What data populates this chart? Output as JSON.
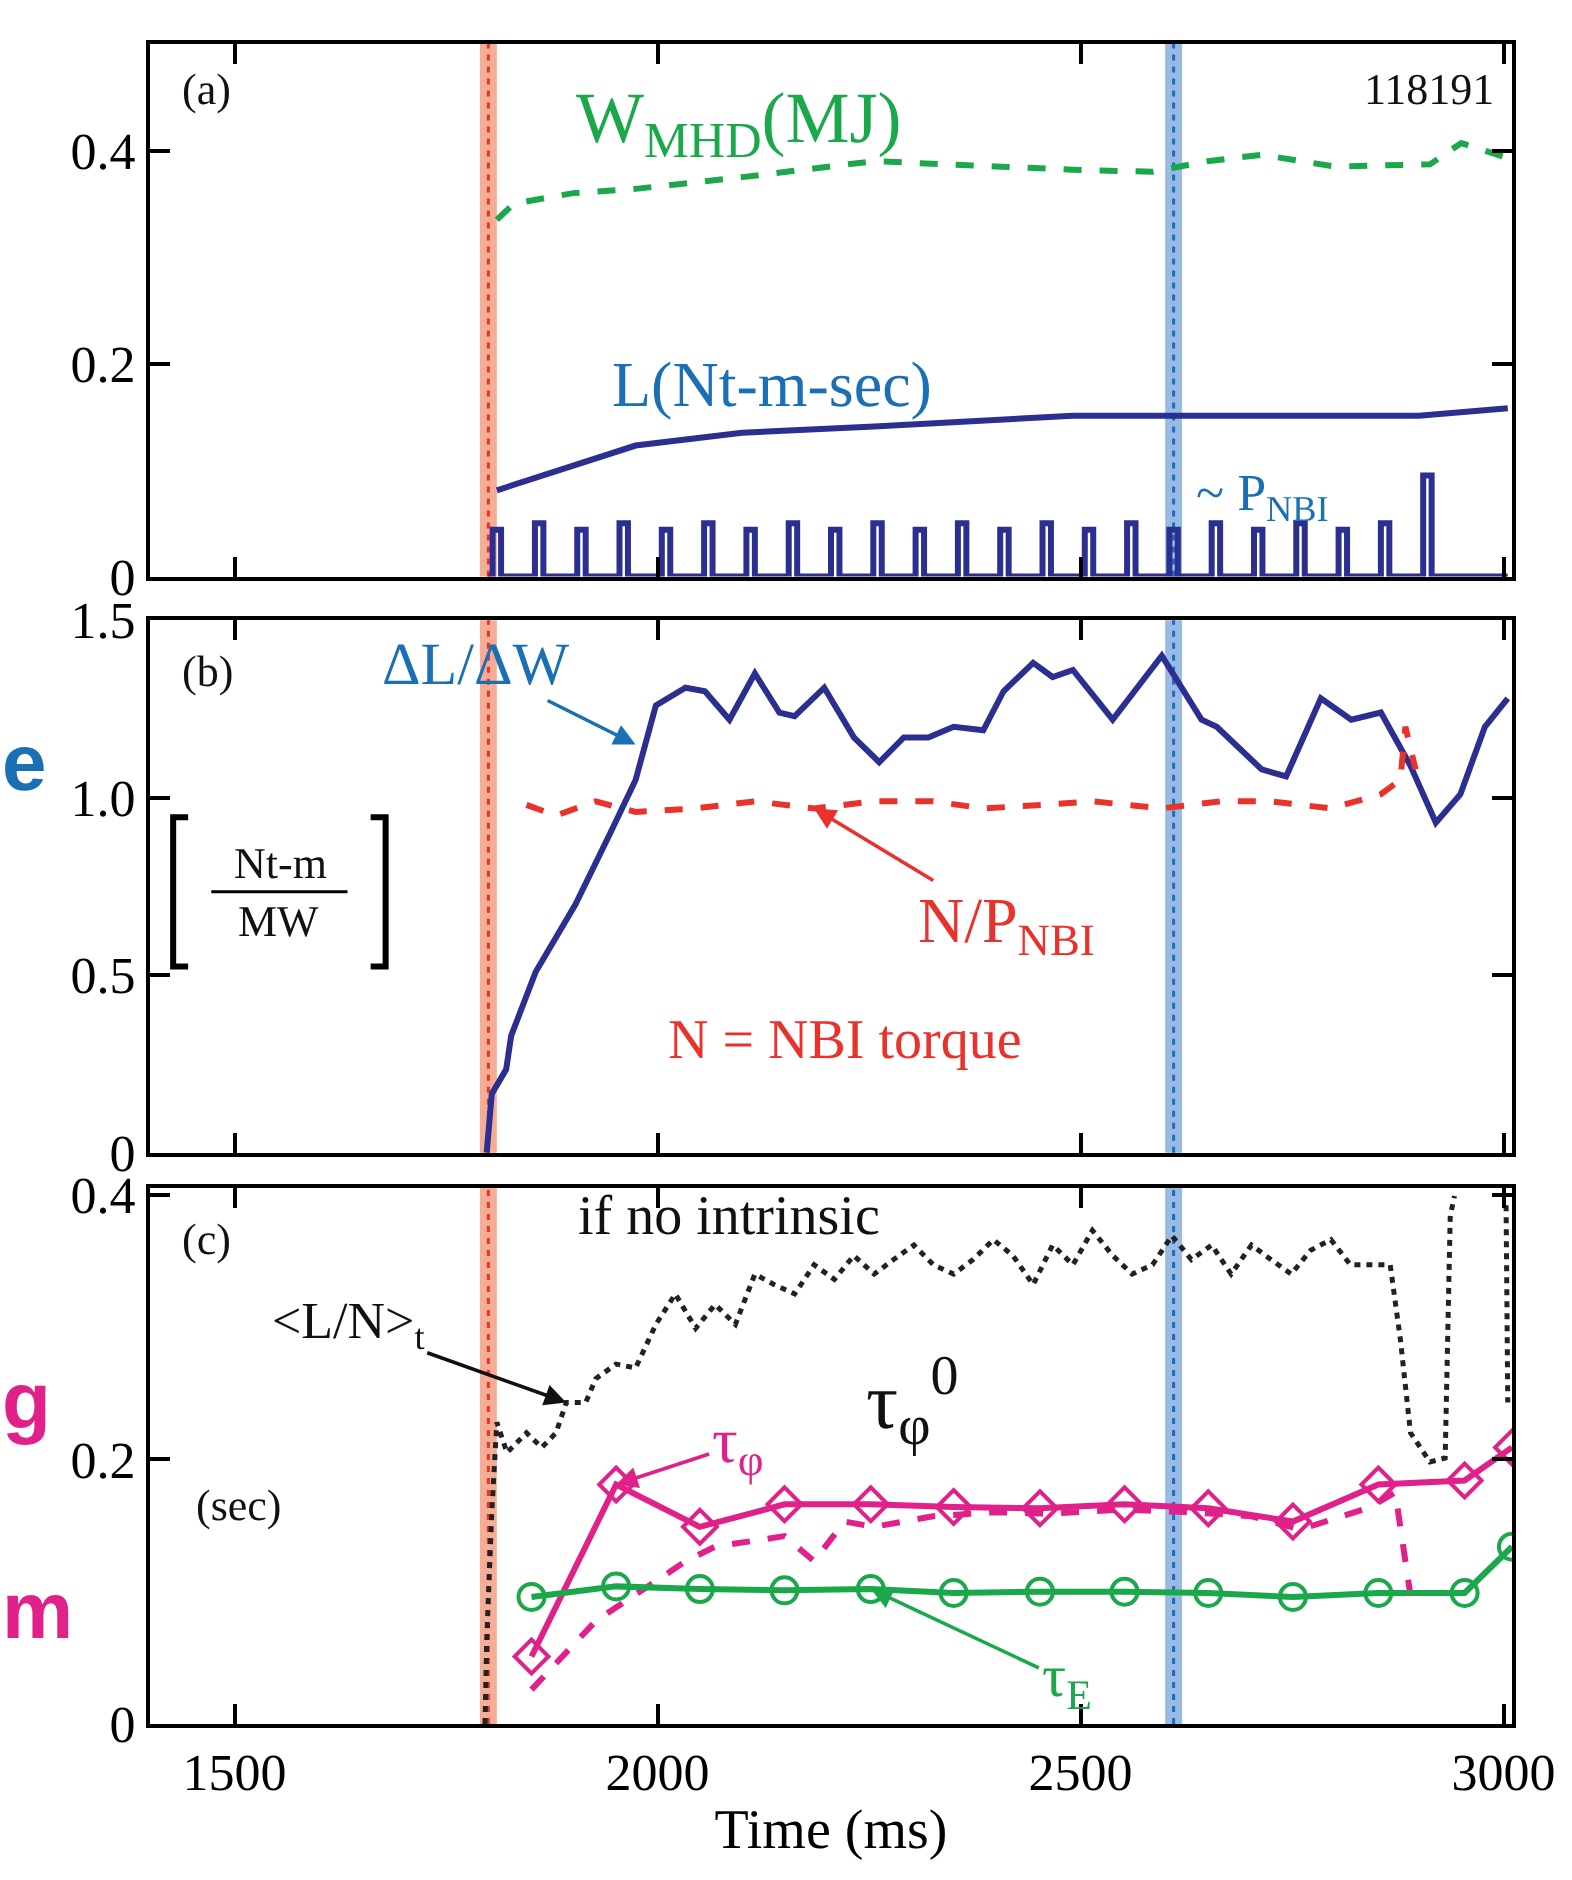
{
  "chart_data": [
    {
      "type": "line",
      "xlim": [
        1400,
        3010
      ],
      "xticks": [
        1500,
        2000,
        2500,
        3000
      ],
      "ylim": [
        0,
        0.5
      ],
      "yticks": [
        0,
        0.2,
        0.4
      ],
      "tick_labels": "y",
      "bands": [
        {
          "axis": "x",
          "from": 1790,
          "to": 1810,
          "color": "#f5a48a"
        },
        {
          "axis": "x",
          "from": 2600,
          "to": 2620,
          "color": "#8fb3e3"
        }
      ],
      "ref_lines": [
        {
          "axis": "x",
          "value": 1800,
          "color": "#e8322b",
          "line_style": "dotted"
        },
        {
          "axis": "x",
          "value": 2610,
          "color": "#1a6fb5",
          "line_style": "dotted"
        }
      ],
      "annotations": [
        "(a)",
        "118191",
        "W$_{MHD}$(MJ)",
        "L(Nt-m-sec)",
        "~ P$_{NBI}$"
      ],
      "series": [
        {
          "color": "#1aa84a",
          "line_style": "dashed",
          "x": [
            1810,
            1830,
            1900,
            1974,
            2100,
            2256,
            2400,
            2491,
            2585,
            2650,
            2714,
            2800,
            2913,
            2950,
            3005
          ],
          "values": [
            0.335,
            0.35,
            0.36,
            0.364,
            0.375,
            0.39,
            0.385,
            0.382,
            0.38,
            0.39,
            0.396,
            0.385,
            0.387,
            0.407,
            0.393
          ]
        },
        {
          "color": "#2b2f8f",
          "line_style": "solid",
          "x": [
            1810,
            1974,
            2100,
            2256,
            2491,
            2700,
            2900,
            3005
          ],
          "values": [
            0.081,
            0.123,
            0.135,
            0.141,
            0.151,
            0.151,
            0.151,
            0.158
          ]
        },
        {
          "color": "#2b2f8f",
          "line_style": "solid",
          "x": [
            1800,
            1805,
            1805,
            1815,
            1815,
            1855,
            1855,
            1865,
            1865,
            1905,
            1905,
            1915,
            1915,
            1955,
            1955,
            1965,
            1965,
            2005,
            2005,
            2015,
            2015,
            2055,
            2055,
            2065,
            2065,
            2105,
            2105,
            2115,
            2115,
            2155,
            2155,
            2165,
            2165,
            2205,
            2205,
            2215,
            2215,
            2255,
            2255,
            2265,
            2265,
            2305,
            2305,
            2315,
            2315,
            2355,
            2355,
            2365,
            2365,
            2405,
            2405,
            2415,
            2415,
            2455,
            2455,
            2465,
            2465,
            2505,
            2505,
            2515,
            2515,
            2555,
            2555,
            2565,
            2565,
            2605,
            2605,
            2615,
            2615,
            2655,
            2655,
            2665,
            2665,
            2705,
            2705,
            2715,
            2715,
            2755,
            2755,
            2765,
            2765,
            2805,
            2805,
            2815,
            2815,
            2855,
            2855,
            2865,
            2865,
            2905,
            2905,
            2915,
            2915,
            3005
          ],
          "values": [
            0,
            0,
            0.044,
            0.044,
            0,
            0,
            0.05,
            0.05,
            0,
            0,
            0.044,
            0.044,
            0,
            0,
            0.05,
            0.05,
            0,
            0,
            0.044,
            0.044,
            0,
            0,
            0.05,
            0.05,
            0,
            0,
            0.044,
            0.044,
            0,
            0,
            0.05,
            0.05,
            0,
            0,
            0.044,
            0.044,
            0,
            0,
            0.05,
            0.05,
            0,
            0,
            0.044,
            0.044,
            0,
            0,
            0.05,
            0.05,
            0,
            0,
            0.044,
            0.044,
            0,
            0,
            0.05,
            0.05,
            0,
            0,
            0.044,
            0.044,
            0,
            0,
            0.05,
            0.05,
            0,
            0,
            0.044,
            0.044,
            0,
            0,
            0.05,
            0.05,
            0,
            0,
            0.044,
            0.044,
            0,
            0,
            0.05,
            0.05,
            0,
            0,
            0.044,
            0.044,
            0,
            0,
            0.05,
            0.05,
            0,
            0,
            0.095,
            0.095,
            0,
            0
          ]
        }
      ]
    },
    {
      "type": "line",
      "xlim": [
        1400,
        3010
      ],
      "xticks": [
        1500,
        2000,
        2500,
        3000
      ],
      "ylim": [
        0,
        1.5
      ],
      "yticks": [
        0,
        0.5,
        {
          "value": 1,
          "label": "1.0"
        },
        1.5
      ],
      "tick_labels": "y",
      "bands": [
        {
          "axis": "x",
          "from": 1790,
          "to": 1810,
          "color": "#f5a48a"
        },
        {
          "axis": "x",
          "from": 2600,
          "to": 2620,
          "color": "#8fb3e3"
        }
      ],
      "ref_lines": [
        {
          "axis": "x",
          "value": 1800,
          "color": "#e8322b",
          "line_style": "dotted"
        },
        {
          "axis": "x",
          "value": 2610,
          "color": "#1a6fb5",
          "line_style": "dotted"
        }
      ],
      "annotations": [
        "(b)",
        {
          "text": "ΔL/ΔW",
          "x": 1974,
          "y": 1.15
        },
        {
          "text": "N/P$_{NBI}$",
          "x": 2185,
          "y": 0.97
        },
        "N = NBI torque",
        "Nt-m",
        "MW",
        "e"
      ],
      "series": [
        {
          "color": "#2b2f8f",
          "line_style": "solid",
          "x": [
            1798,
            1804,
            1821,
            1827,
            1856,
            1903,
            1944,
            1974,
            1998,
            2033,
            2056,
            2085,
            2115,
            2144,
            2162,
            2197,
            2232,
            2262,
            2291,
            2320,
            2350,
            2385,
            2409,
            2444,
            2467,
            2491,
            2538,
            2596,
            2643,
            2661,
            2714,
            2743,
            2784,
            2820,
            2855,
            2890,
            2920,
            2949,
            2978,
            3005
          ],
          "values": [
            0,
            0.166,
            0.235,
            0.33,
            0.51,
            0.7,
            0.9,
            1.05,
            1.26,
            1.31,
            1.3,
            1.22,
            1.35,
            1.24,
            1.23,
            1.31,
            1.17,
            1.1,
            1.17,
            1.17,
            1.2,
            1.19,
            1.3,
            1.38,
            1.34,
            1.36,
            1.22,
            1.4,
            1.22,
            1.2,
            1.08,
            1.06,
            1.28,
            1.22,
            1.24,
            1.09,
            0.93,
            1.01,
            1.2,
            1.28
          ]
        },
        {
          "color": "#e8322b",
          "line_style": "dashed",
          "x": [
            1845,
            1880,
            1927,
            1974,
            2045,
            2115,
            2185,
            2256,
            2326,
            2385,
            2455,
            2514,
            2596,
            2666,
            2725,
            2796,
            2855,
            2878,
            2884,
            2896
          ],
          "values": [
            0.98,
            0.95,
            0.99,
            0.96,
            0.97,
            0.99,
            0.97,
            0.99,
            0.99,
            0.97,
            0.98,
            0.99,
            0.97,
            0.99,
            0.99,
            0.97,
            1.01,
            1.05,
            1.2,
            1.08
          ]
        }
      ]
    },
    {
      "type": "line",
      "xlim": [
        1400,
        3010
      ],
      "xticks": [
        1500,
        2000,
        2500,
        3000
      ],
      "ylim": [
        0,
        0.405
      ],
      "yticks": [
        0,
        0.2,
        0.4
      ],
      "xlabel": "Time (ms)",
      "bands": [
        {
          "axis": "x",
          "from": 1790,
          "to": 1810,
          "color": "#f5a48a"
        },
        {
          "axis": "x",
          "from": 2600,
          "to": 2620,
          "color": "#8fb3e3"
        }
      ],
      "ref_lines": [
        {
          "axis": "x",
          "value": 1800,
          "color": "#e8322b",
          "line_style": "dotted"
        },
        {
          "axis": "x",
          "value": 2610,
          "color": "#1a6fb5",
          "line_style": "dotted"
        }
      ],
      "annotations": [
        "(c)",
        "if no intrinsic",
        {
          "text": "<L/N>$_{t}$",
          "x": 1892,
          "y": 0.243
        },
        "τ$_{φ}$$^{0}$",
        {
          "text": "τ$_{φ}$",
          "x": 1951,
          "y": 0.181
        },
        "(sec)",
        {
          "text": "τ$_{E}$",
          "x": 2252,
          "y": 0.102
        },
        "g",
        "m"
      ],
      "series": [
        {
          "color": "#222222",
          "line_style": "dotted",
          "x": [
            1796,
            1798,
            1804,
            1810,
            1822,
            1845,
            1863,
            1880,
            1892,
            1915,
            1927,
            1951,
            1974,
            1998,
            2021,
            2045,
            2068,
            2092,
            2115,
            2138,
            2162,
            2185,
            2209,
            2232,
            2256,
            2279,
            2303,
            2326,
            2350,
            2373,
            2397,
            2420,
            2444,
            2467,
            2491,
            2514,
            2538,
            2561,
            2585,
            2608,
            2631,
            2655,
            2678,
            2702,
            2725,
            2749,
            2772,
            2796,
            2819,
            2843,
            2866,
            2878,
            2890,
            2913,
            2931,
            2937,
            2942,
            2970,
            3003,
            3005
          ],
          "values": [
            0,
            0.063,
            0.16,
            0.228,
            0.205,
            0.22,
            0.209,
            0.22,
            0.243,
            0.243,
            0.261,
            0.272,
            0.269,
            0.302,
            0.325,
            0.299,
            0.317,
            0.302,
            0.34,
            0.332,
            0.325,
            0.347,
            0.336,
            0.354,
            0.34,
            0.351,
            0.362,
            0.347,
            0.34,
            0.351,
            0.366,
            0.354,
            0.332,
            0.362,
            0.347,
            0.373,
            0.354,
            0.34,
            0.347,
            0.369,
            0.351,
            0.362,
            0.34,
            0.362,
            0.351,
            0.34,
            0.358,
            0.366,
            0.347,
            0.347,
            0.347,
            0.291,
            0.22,
            0.198,
            0.201,
            0.384,
            0.399,
            null,
            0.392,
            0.243
          ]
        },
        {
          "color": "#e0218a",
          "line_style": "dashed",
          "x": [
            1851,
            1927,
            1998,
            2033,
            2068,
            2150,
            2185,
            2221,
            2256,
            2326,
            2397,
            2467,
            2550,
            2631,
            2702,
            2760,
            2843,
            2872,
            2884,
            2890
          ],
          "values": [
            0.026,
            0.078,
            0.108,
            0.123,
            0.134,
            0.142,
            0.123,
            0.153,
            0.149,
            0.157,
            0.16,
            0.159,
            0.162,
            0.16,
            0.157,
            0.147,
            0.164,
            0.175,
            0.123,
            0.097
          ]
        },
        {
          "color": "#e0218a",
          "line_style": "solid",
          "marker": "diamond",
          "x": [
            1851,
            1951,
            2050,
            2150,
            2252,
            2350,
            2452,
            2552,
            2651,
            2751,
            2852,
            2954,
            3010
          ],
          "values": [
            0.051,
            0.181,
            0.149,
            0.166,
            0.166,
            0.164,
            0.163,
            0.166,
            0.163,
            0.153,
            0.181,
            0.184,
            0.209
          ]
        },
        {
          "color": "#1aa84a",
          "line_style": "solid",
          "marker": "circle",
          "x": [
            1851,
            1951,
            2050,
            2150,
            2252,
            2350,
            2452,
            2552,
            2651,
            2751,
            2852,
            2954,
            3010
          ],
          "values": [
            0.096,
            0.104,
            0.102,
            0.101,
            0.102,
            0.099,
            0.1,
            0.1,
            0.099,
            0.096,
            0.099,
            0.099,
            0.134
          ]
        }
      ]
    }
  ]
}
